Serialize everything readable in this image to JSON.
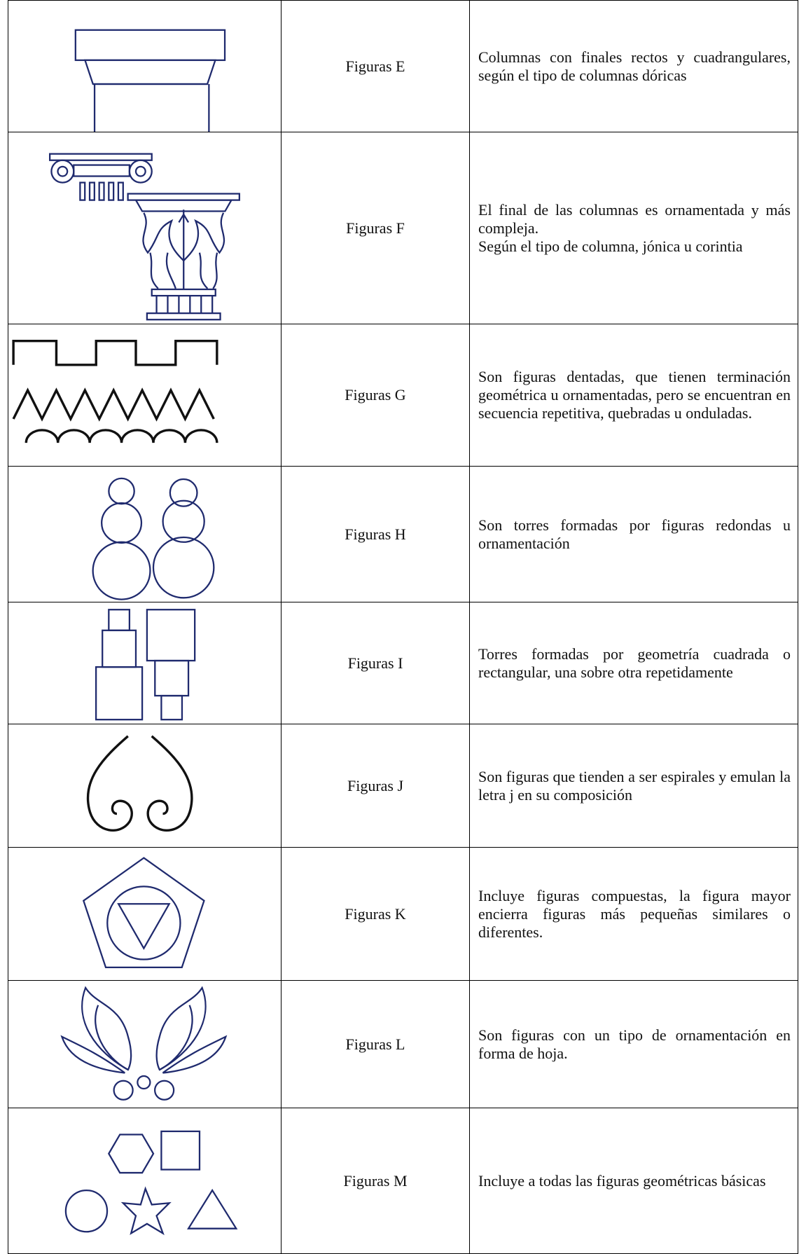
{
  "table": {
    "rows": [
      {
        "label": "Figuras E",
        "description": [
          "Columnas con finales rectos y cuadrangulares, según el tipo de columnas dóricas"
        ]
      },
      {
        "label": "Figuras F",
        "description": [
          "El final de las columnas es ornamentada y más compleja.",
          "Según el tipo de columna, jónica u corintia"
        ]
      },
      {
        "label": "Figuras G",
        "description": [
          "Son figuras dentadas, que tienen terminación geométrica u ornamentadas, pero se encuentran en secuencia repetitiva, quebradas u onduladas."
        ]
      },
      {
        "label": "Figuras H",
        "description": [
          "Son torres formadas por figuras redondas u ornamentación"
        ]
      },
      {
        "label": "Figuras I",
        "description": [
          "Torres formadas por geometría cuadrada o rectangular, una sobre otra repetidamente"
        ]
      },
      {
        "label": "Figuras J",
        "description": [
          "Son figuras que tienden a ser espirales y emulan la letra j en su composición"
        ]
      },
      {
        "label": "Figuras K",
        "description": [
          "Incluye figuras compuestas, la figura mayor encierra figuras más pequeñas similares o diferentes."
        ]
      },
      {
        "label": "Figuras L",
        "description": [
          "Son figuras con un tipo de ornamentación en forma de hoja."
        ]
      },
      {
        "label": "Figuras M",
        "description": [
          "Incluye a todas las figuras geométricas básicas"
        ]
      }
    ]
  }
}
